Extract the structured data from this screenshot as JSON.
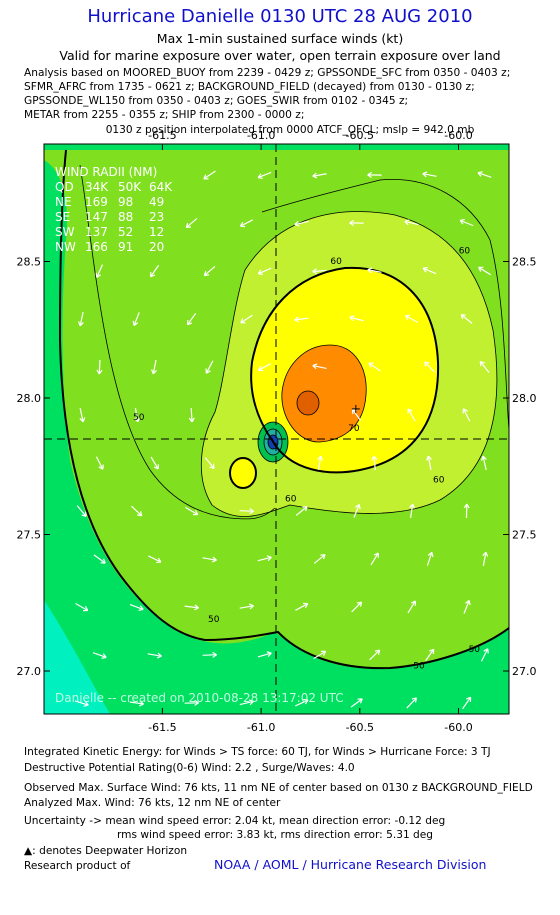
{
  "header": {
    "title": "Hurricane Danielle 0130 UTC 28 AUG 2010",
    "subtitle1": "Max 1-min sustained surface winds (kt)",
    "subtitle2": "Valid for marine exposure over water, open terrain exposure over land",
    "analysis_lines": [
      "Analysis based on MOORED_BUOY from 2239 - 0429 z; GPSSONDE_SFC from 0350 - 0403 z;",
      "SFMR_AFRC from 1735 - 0621 z; BACKGROUND_FIELD (decayed) from 0130 - 0130 z;",
      "GPSSONDE_WL150 from 0350 - 0403 z; GOES_SWIR from 0102 - 0345 z;",
      "METAR from 2255 - 0355 z; SHIP from 2300 - 0000 z;"
    ],
    "position_line": "0130 z position interpolated from 0000 ATCF_OFCL; mslp = 942.0 mb"
  },
  "wind_radii": {
    "title": "WIND RADII (NM)",
    "header": [
      "QD",
      "34K",
      "50K",
      "64K"
    ],
    "rows": [
      [
        "NE",
        "169",
        "98",
        "49"
      ],
      [
        "SE",
        "147",
        "88",
        "23"
      ],
      [
        "SW",
        "137",
        "52",
        "12"
      ],
      [
        "NW",
        "166",
        "91",
        "20"
      ]
    ]
  },
  "credit": "Danielle -- created on 2010-08-28 13:17:02 UTC",
  "footer": {
    "lines": [
      "Integrated Kinetic Energy:  for Winds > TS force: 60 TJ,  for Winds > Hurricane Force: 3 TJ",
      "Destructive Potential Rating(0-6)   Wind: 2.2 , Surge/Waves: 4.0",
      "Observed Max. Surface Wind: 76 kts, 11 nm NE of center based on 0130 z BACKGROUND_FIELD",
      "Analyzed Max. Wind: 76 kts, 12 nm NE of center",
      "Uncertainty -> mean wind speed error: 2.04 kt,   mean direction error:  -0.12 deg",
      "rms wind speed error: 3.83 kt,   rms direction error: 5.31 deg",
      ": denotes Deepwater Horizon",
      "Research product of"
    ],
    "agency": "NOAA / AOML / Hurricane Research Division"
  },
  "chart_data": {
    "type": "contour",
    "xaxis": {
      "ticks": [
        -61.5,
        -61.0,
        -60.5,
        -60.0
      ],
      "labels": [
        "-61.5",
        "-61.0",
        "-60.5",
        "-60.0"
      ],
      "range": [
        -61.72,
        -59.83
      ]
    },
    "yaxis": {
      "ticks": [
        27.0,
        27.5,
        28.0,
        28.5
      ],
      "labels": [
        "27.0",
        "27.5",
        "28.0",
        "28.5"
      ],
      "range": [
        26.84,
        28.84
      ]
    },
    "center": {
      "lon": -60.61,
      "lat": 27.84
    },
    "max_wind_marker": {
      "lon": -60.52,
      "lat": 27.96
    },
    "contour_labels": [
      {
        "text": "50",
        "lon": -61.62,
        "lat": 27.92
      },
      {
        "text": "50",
        "lon": -61.24,
        "lat": 27.18
      },
      {
        "text": "50",
        "lon": -60.2,
        "lat": 27.01
      },
      {
        "text": "50",
        "lon": -59.92,
        "lat": 27.07
      },
      {
        "text": "60",
        "lon": -60.62,
        "lat": 28.49
      },
      {
        "text": "60",
        "lon": -59.97,
        "lat": 28.53
      },
      {
        "text": "60",
        "lon": -60.85,
        "lat": 27.62
      },
      {
        "text": "60",
        "lon": -60.1,
        "lat": 27.69
      },
      {
        "text": "70",
        "lon": -60.53,
        "lat": 27.88
      }
    ],
    "colors": {
      "cyan": "#00f0c0",
      "green": "#00e060",
      "light_green": "#80e020",
      "yellow_green": "#c0f030",
      "yellow": "#ffff00",
      "orange": "#ff8c00",
      "title_blue": "#1010cc"
    }
  }
}
